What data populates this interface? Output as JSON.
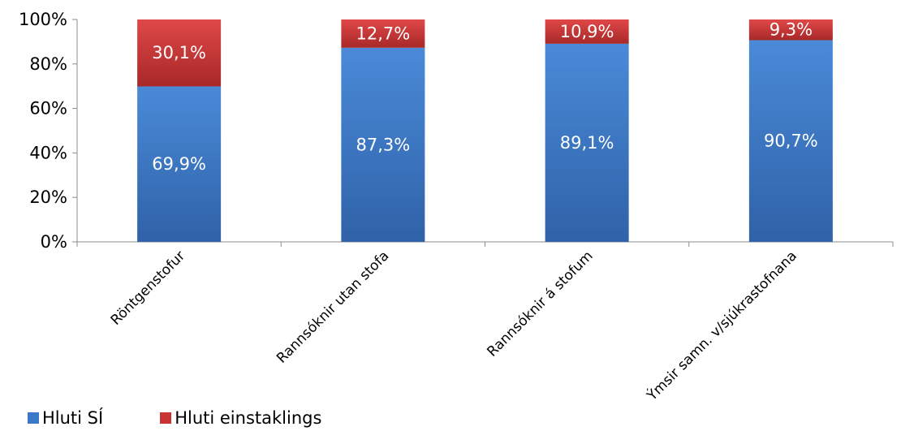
{
  "chart_data": {
    "type": "bar",
    "stacked": true,
    "percent": true,
    "categories": [
      "Röntgenstofur",
      "Rannsóknir utan stofa",
      "Rannsóknir á stofum",
      "Ýmsir samn. v/sjúkrastofnana"
    ],
    "series": [
      {
        "name": "Hluti SÍ",
        "values": [
          69.9,
          87.3,
          89.1,
          90.7
        ],
        "labels": [
          "69,9%",
          "87,3%",
          "89,1%",
          "90,7%"
        ],
        "color": "#3b78c8"
      },
      {
        "name": "Hluti einstaklings",
        "values": [
          30.1,
          12.7,
          10.9,
          9.3
        ],
        "labels": [
          "30,1%",
          "12,7%",
          "10,9%",
          "9,3%"
        ],
        "color": "#c83434"
      }
    ],
    "yticks": [
      "0%",
      "20%",
      "40%",
      "60%",
      "80%",
      "100%"
    ],
    "ylim": [
      0,
      100
    ],
    "grid": false,
    "legend_position": "bottom-left",
    "title": "",
    "xlabel": "",
    "ylabel": ""
  }
}
